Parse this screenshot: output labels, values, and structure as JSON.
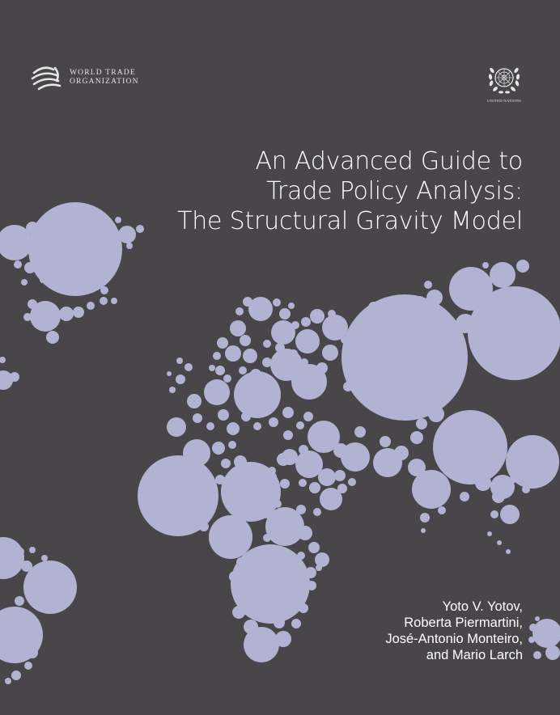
{
  "publisher": {
    "wto_name_line1": "World Trade",
    "wto_name_line2": "Organization",
    "un_name": "UNITED NATIONS"
  },
  "title": {
    "line1": "An Advanced Guide to",
    "line2": "Trade Policy Analysis:",
    "line3": "The Structural Gravity Model"
  },
  "authors": [
    "Yoto V. Yotov,",
    "Roberta Piermartini,",
    "José-Antonio Monteiro,",
    "and Mario Larch"
  ],
  "colors": {
    "background": "#49464a",
    "bubble": "#b2b3d3",
    "text": "#ffffff"
  },
  "illustration": {
    "type": "world-map-of-bubbles",
    "icon": "world-map-illustration"
  }
}
